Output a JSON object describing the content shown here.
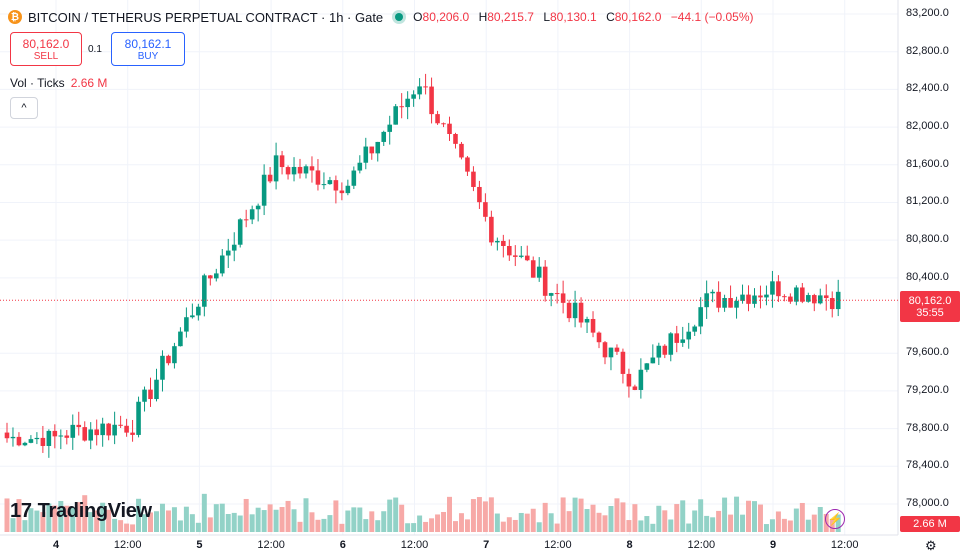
{
  "header": {
    "coin_symbol": "₿",
    "title": "BITCOIN / TETHERUS PERPETUAL CONTRACT · 1h · Gate",
    "ohlc": {
      "o_label": "O",
      "o": "80,206.0",
      "h_label": "H",
      "h": "80,215.7",
      "l_label": "L",
      "l": "80,130.1",
      "c_label": "C",
      "c": "80,162.0",
      "change": "−44.1 (−0.05%)"
    }
  },
  "trade": {
    "sell_price": "80,162.0",
    "sell_label": "SELL",
    "spread": "0.1",
    "buy_price": "80,162.1",
    "buy_label": "BUY"
  },
  "volume_legend": {
    "label": "Vol · Ticks",
    "value": "2.66 M"
  },
  "collapse_glyph": "^",
  "logo": {
    "mark": "17",
    "text": "TradingView"
  },
  "price_tag": {
    "price": "80,162.0",
    "countdown": "35:55"
  },
  "volume_tag": "2.66 M",
  "y_axis": [
    "83,200.0",
    "82,800.0",
    "82,400.0",
    "82,000.0",
    "81,600.0",
    "81,200.0",
    "80,800.0",
    "80,400.0",
    "79,600.0",
    "79,200.0",
    "78,800.0",
    "78,400.0",
    "78,000.0"
  ],
  "x_axis": [
    "4",
    "12:00",
    "5",
    "12:00",
    "6",
    "12:00",
    "7",
    "12:00",
    "8",
    "12:00",
    "9",
    "12:00"
  ],
  "colors": {
    "up": "#089981",
    "down": "#f23645",
    "up_vol": "#92d2c7",
    "down_vol": "#f7a9a7",
    "grid": "#f0f3fa"
  },
  "icons": {
    "bolt": "lightning-icon",
    "settings": "gear-icon"
  },
  "chart_data": {
    "type": "candlestick",
    "interval": "1h",
    "ylim": [
      77900,
      83300
    ],
    "current_price": 80162.0,
    "anchor_points": [
      {
        "x": "4",
        "y": 78750
      },
      {
        "x": "12:00",
        "y": 78850
      },
      {
        "x": "5",
        "y": 80300
      },
      {
        "x": "12:00",
        "y": 81600
      },
      {
        "x": "6",
        "y": 81400
      },
      {
        "x": "12:00",
        "y": 82500
      },
      {
        "x": "7",
        "y": 80900
      },
      {
        "x": "12:00",
        "y": 80150
      },
      {
        "x": "8",
        "y": 79300
      },
      {
        "x": "12:00",
        "y": 80150
      },
      {
        "x": "9",
        "y": 80300
      },
      {
        "x": "12:00",
        "y": 80162
      }
    ]
  }
}
